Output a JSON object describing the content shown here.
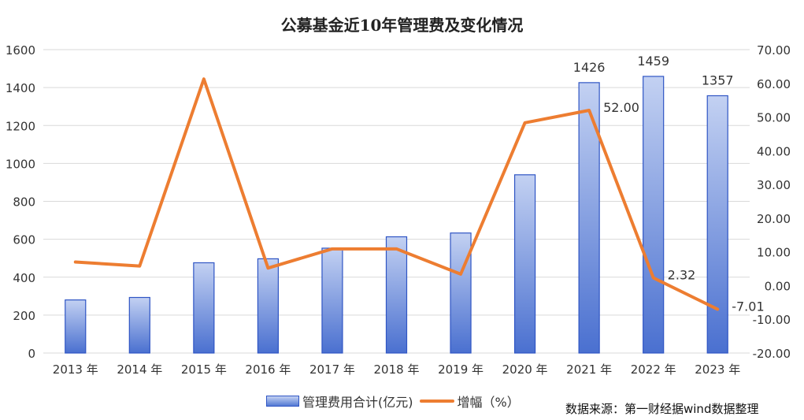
{
  "chart_data": {
    "type": "bar",
    "title": "公募基金近10年管理费及变化情况",
    "categories": [
      "2013 年",
      "2014 年",
      "2015 年",
      "2016 年",
      "2017 年",
      "2018 年",
      "2019 年",
      "2020 年",
      "2021 年",
      "2022 年",
      "2023 年"
    ],
    "series": [
      {
        "name": "管理费用合计(亿元)",
        "type": "bar",
        "axis": "left",
        "values": [
          280,
          293,
          476,
          497,
          553,
          613,
          633,
          940,
          1426,
          1459,
          1357
        ],
        "labels": [
          "",
          "",
          "",
          "",
          "",
          "",
          "",
          "",
          "1426",
          "1459",
          "1357"
        ]
      },
      {
        "name": "增幅（%）",
        "type": "line",
        "axis": "right",
        "values": [
          7.0,
          5.8,
          61.3,
          5.2,
          10.9,
          10.9,
          3.4,
          48.3,
          52.0,
          2.32,
          -7.01
        ],
        "labels": [
          "",
          "",
          "",
          "",
          "",
          "",
          "",
          "",
          "52.00",
          "2.32",
          "-7.01"
        ]
      }
    ],
    "ylim_left": [
      0,
      1600
    ],
    "ylim_right": [
      -20,
      70
    ],
    "yticks_left": [
      "0",
      "200",
      "400",
      "600",
      "800",
      "1000",
      "1200",
      "1400",
      "1600"
    ],
    "yticks_right": [
      "-20.00",
      "-10.00",
      "0.00",
      "10.00",
      "20.00",
      "30.00",
      "40.00",
      "50.00",
      "60.00",
      "70.00"
    ],
    "grid": true,
    "legend": "bottom",
    "colors": {
      "bar_top": "#c3d1f2",
      "bar_bottom": "#4a70d0",
      "bar_border": "#2f55c4",
      "line": "#ed7d31",
      "grid": "#d9d9d9"
    }
  },
  "source_text": "数据来源：第一财经据wind数据整理"
}
